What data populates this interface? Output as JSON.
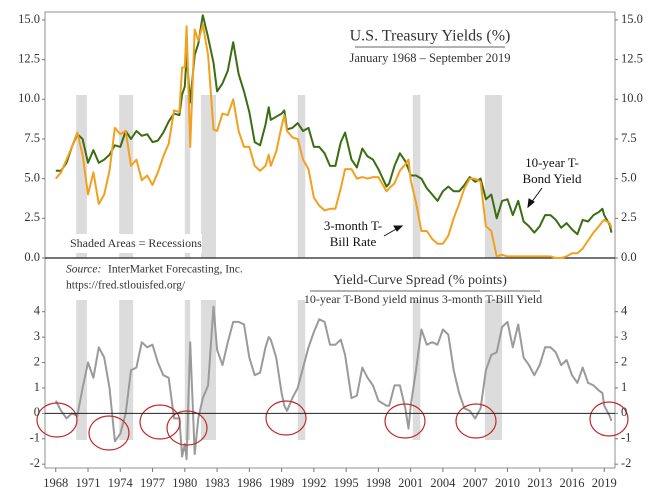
{
  "chart_data": [
    {
      "type": "line",
      "title": "U.S. Treasury Yields (%)",
      "subtitle": "January 1968 – September 2019",
      "note": "Shaded Areas = Recessions",
      "source_label": "Source:",
      "source": "InterMarket Forecasting, Inc.",
      "url": "https://fred.stlouisfed.org/",
      "x": [
        1968.0,
        1968.5,
        1969.0,
        1969.5,
        1970.0,
        1970.5,
        1971.0,
        1971.5,
        1972.0,
        1972.5,
        1973.0,
        1973.5,
        1974.0,
        1974.5,
        1975.0,
        1975.5,
        1976.0,
        1976.5,
        1977.0,
        1977.5,
        1978.0,
        1978.5,
        1979.0,
        1979.5,
        1979.75,
        1980.0,
        1980.17,
        1980.5,
        1980.92,
        1981.25,
        1981.67,
        1982.17,
        1982.67,
        1983.0,
        1983.5,
        1984.0,
        1984.5,
        1985.0,
        1985.5,
        1986.0,
        1986.5,
        1987.0,
        1987.5,
        1987.8,
        1988.0,
        1988.5,
        1989.0,
        1989.25,
        1989.5,
        1990.0,
        1990.5,
        1991.0,
        1991.5,
        1992.0,
        1992.5,
        1993.0,
        1993.5,
        1994.0,
        1994.5,
        1994.9,
        1995.5,
        1996.0,
        1996.5,
        1997.0,
        1997.5,
        1998.0,
        1998.75,
        1999.0,
        1999.5,
        2000.0,
        2000.5,
        2000.8,
        2001.0,
        2001.5,
        2002.0,
        2002.5,
        2003.0,
        2003.5,
        2004.0,
        2004.5,
        2005.0,
        2005.5,
        2006.0,
        2006.5,
        2007.0,
        2007.5,
        2008.0,
        2008.5,
        2009.0,
        2009.5,
        2010.0,
        2010.5,
        2011.0,
        2011.5,
        2012.0,
        2012.5,
        2013.0,
        2013.5,
        2014.0,
        2014.5,
        2015.0,
        2015.5,
        2016.0,
        2016.5,
        2017.0,
        2017.5,
        2018.0,
        2018.5,
        2018.83,
        2019.0,
        2019.5,
        2019.67
      ],
      "series": [
        {
          "name": "10-year T-Bond Yield",
          "color": "#3a6e12",
          "values": [
            5.5,
            5.5,
            6.0,
            7.0,
            7.8,
            7.5,
            6.0,
            6.8,
            6.0,
            6.2,
            6.5,
            7.1,
            7.0,
            8.0,
            7.5,
            8.0,
            7.7,
            7.8,
            7.3,
            7.4,
            7.9,
            8.6,
            9.1,
            9.0,
            10.3,
            10.8,
            12.8,
            9.8,
            12.8,
            13.5,
            15.3,
            13.9,
            12.3,
            10.5,
            11.0,
            11.8,
            13.6,
            11.6,
            10.5,
            9.2,
            7.3,
            7.1,
            8.4,
            9.5,
            8.7,
            8.9,
            9.1,
            9.3,
            8.1,
            8.2,
            8.5,
            8.0,
            8.2,
            7.0,
            7.0,
            6.6,
            5.8,
            5.8,
            7.3,
            7.9,
            6.2,
            5.7,
            6.9,
            6.4,
            6.2,
            5.6,
            4.5,
            4.7,
            5.8,
            6.6,
            6.1,
            5.6,
            5.2,
            5.2,
            5.0,
            4.4,
            4.0,
            3.6,
            4.2,
            4.5,
            4.2,
            4.2,
            4.6,
            5.1,
            4.8,
            5.0,
            3.7,
            4.0,
            2.5,
            3.6,
            3.7,
            2.7,
            3.6,
            2.3,
            2.0,
            1.6,
            2.0,
            2.7,
            2.7,
            2.4,
            1.9,
            2.2,
            1.8,
            1.5,
            2.4,
            2.3,
            2.7,
            2.9,
            3.1,
            2.7,
            2.1,
            1.6
          ]
        },
        {
          "name": "3-month T-Bill Rate",
          "color": "#f2a01f",
          "values": [
            5.0,
            5.4,
            6.2,
            7.0,
            7.9,
            6.5,
            4.0,
            5.4,
            3.4,
            4.0,
            5.5,
            8.2,
            7.8,
            8.0,
            5.8,
            6.2,
            4.9,
            5.2,
            4.6,
            5.4,
            6.4,
            7.2,
            9.3,
            9.2,
            12.0,
            12.0,
            14.6,
            7.0,
            14.4,
            13.7,
            14.7,
            12.8,
            8.1,
            8.0,
            9.1,
            9.0,
            10.0,
            8.0,
            7.0,
            7.0,
            5.8,
            5.5,
            5.8,
            6.5,
            5.8,
            6.7,
            8.3,
            9.0,
            8.0,
            7.6,
            7.5,
            6.2,
            5.6,
            3.8,
            3.3,
            3.0,
            3.1,
            3.1,
            4.4,
            5.6,
            5.6,
            5.0,
            5.1,
            5.0,
            5.1,
            5.1,
            4.2,
            4.4,
            4.7,
            5.5,
            5.9,
            6.2,
            4.9,
            3.5,
            1.7,
            1.7,
            1.2,
            0.9,
            0.9,
            1.4,
            2.5,
            3.4,
            4.4,
            5.0,
            5.0,
            4.8,
            2.0,
            1.7,
            0.1,
            0.2,
            0.1,
            0.1,
            0.1,
            0.1,
            0.1,
            0.1,
            0.1,
            0.1,
            0.1,
            0.0,
            0.0,
            0.1,
            0.3,
            0.3,
            0.6,
            1.1,
            1.6,
            2.0,
            2.3,
            2.4,
            2.2,
            1.9
          ]
        }
      ],
      "recessions": [
        [
          1969.9,
          1970.9
        ],
        [
          1973.9,
          1975.2
        ],
        [
          1980.0,
          1980.5
        ],
        [
          1981.5,
          1982.9
        ],
        [
          1990.5,
          1991.2
        ],
        [
          2001.2,
          2001.9
        ],
        [
          2007.9,
          2009.5
        ]
      ],
      "xlim": [
        1967,
        2020
      ],
      "ylim": [
        0,
        15.5
      ],
      "yticks": [
        {
          "value": 0,
          "label": "0.0"
        },
        {
          "value": 2.5,
          "label": "2.5"
        },
        {
          "value": 5,
          "label": "5.0"
        },
        {
          "value": 7.5,
          "label": "7.5"
        },
        {
          "value": 10,
          "label": "10.0"
        },
        {
          "value": 12.5,
          "label": "12.5"
        },
        {
          "value": 15,
          "label": "15.0"
        }
      ]
    },
    {
      "type": "line",
      "title": "Yield-Curve Spread (% points)",
      "subtitle": "10-year T-Bond yield minus 3-month T-Bill Yield",
      "x": [
        1968.0,
        1968.5,
        1969.0,
        1969.5,
        1970.0,
        1970.5,
        1971.0,
        1971.5,
        1972.0,
        1972.5,
        1973.0,
        1973.5,
        1974.0,
        1974.5,
        1975.0,
        1975.5,
        1976.0,
        1976.5,
        1977.0,
        1977.5,
        1978.0,
        1978.5,
        1979.0,
        1979.5,
        1979.75,
        1980.0,
        1980.17,
        1980.5,
        1980.92,
        1981.25,
        1981.67,
        1982.17,
        1982.67,
        1983.0,
        1983.5,
        1984.0,
        1984.5,
        1985.0,
        1985.5,
        1986.0,
        1986.5,
        1987.0,
        1987.5,
        1987.8,
        1988.0,
        1988.5,
        1989.0,
        1989.25,
        1989.5,
        1990.0,
        1990.5,
        1991.0,
        1991.5,
        1992.0,
        1992.5,
        1993.0,
        1993.5,
        1994.0,
        1994.5,
        1994.9,
        1995.5,
        1996.0,
        1996.5,
        1997.0,
        1997.5,
        1998.0,
        1998.75,
        1999.0,
        1999.5,
        2000.0,
        2000.5,
        2000.8,
        2001.0,
        2001.5,
        2002.0,
        2002.5,
        2003.0,
        2003.5,
        2004.0,
        2004.5,
        2005.0,
        2005.5,
        2006.0,
        2006.5,
        2007.0,
        2007.5,
        2008.0,
        2008.5,
        2009.0,
        2009.5,
        2010.0,
        2010.5,
        2011.0,
        2011.5,
        2012.0,
        2012.5,
        2013.0,
        2013.5,
        2014.0,
        2014.5,
        2015.0,
        2015.5,
        2016.0,
        2016.5,
        2017.0,
        2017.5,
        2018.0,
        2018.5,
        2018.83,
        2019.0,
        2019.5,
        2019.67
      ],
      "series": [
        {
          "color": "#9a9a9a",
          "values": [
            0.5,
            0.1,
            -0.2,
            0.0,
            -0.1,
            1.0,
            2.0,
            1.4,
            2.6,
            2.2,
            1.0,
            -1.1,
            -0.8,
            0.0,
            1.7,
            1.8,
            2.8,
            2.6,
            2.7,
            2.0,
            1.5,
            1.4,
            -0.2,
            -0.2,
            -1.7,
            -1.2,
            -1.8,
            2.8,
            -1.6,
            -0.2,
            0.6,
            1.1,
            4.2,
            2.5,
            1.9,
            2.8,
            3.6,
            3.6,
            3.5,
            2.2,
            1.5,
            1.6,
            2.6,
            3.0,
            2.9,
            2.2,
            0.8,
            0.3,
            0.1,
            0.6,
            1.0,
            1.8,
            2.6,
            3.2,
            3.7,
            3.6,
            2.7,
            2.7,
            2.9,
            2.3,
            0.6,
            0.7,
            1.8,
            1.4,
            1.1,
            0.5,
            0.3,
            0.3,
            1.1,
            1.1,
            0.2,
            -0.6,
            0.3,
            1.7,
            3.3,
            2.7,
            2.8,
            2.7,
            3.3,
            3.1,
            1.7,
            0.8,
            0.2,
            0.1,
            -0.2,
            0.2,
            1.7,
            2.3,
            2.4,
            3.4,
            3.6,
            2.6,
            3.5,
            2.2,
            1.9,
            1.5,
            1.9,
            2.6,
            2.6,
            2.4,
            1.9,
            2.1,
            1.5,
            1.2,
            1.8,
            1.2,
            1.1,
            0.9,
            0.8,
            0.3,
            -0.1,
            -0.3
          ]
        }
      ],
      "xlim": [
        1967,
        2020
      ],
      "ylim": [
        -2.15,
        4.5
      ],
      "yticks": [
        -2,
        -1,
        0,
        1,
        2,
        3,
        4
      ],
      "xticks": [
        1968,
        1971,
        1974,
        1977,
        1980,
        1983,
        1986,
        1989,
        1992,
        1995,
        1998,
        2001,
        2004,
        2007,
        2010,
        2013,
        2016,
        2019
      ]
    }
  ]
}
